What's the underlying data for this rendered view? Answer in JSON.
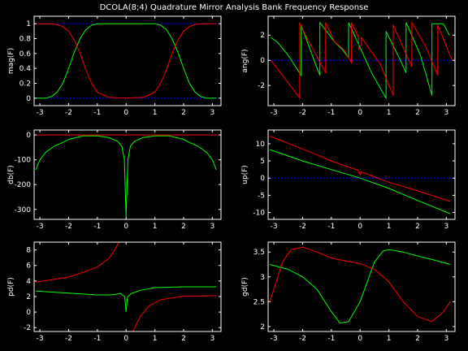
{
  "figure": {
    "title": "DCOLA(8;4) Quadrature Mirror Analysis Bank Frequency Response",
    "background": "#000000",
    "axes_color": "#ffffff",
    "series_colors": {
      "green": "#00ff00",
      "red": "#ff0000",
      "reference": "#0000ff"
    }
  },
  "chart_data": [
    {
      "type": "line",
      "ylabel": "mag(F)",
      "xlim": [
        -3.2,
        3.3
      ],
      "ylim": [
        -0.1,
        1.1
      ],
      "xticks": [
        -3,
        -2,
        -1,
        0,
        1,
        2,
        3
      ],
      "yticks": [
        0,
        0.2,
        0.4,
        0.6,
        0.8,
        1
      ],
      "ytick_labels": [
        "0",
        "0.2",
        "0.4",
        "0.6",
        "0.8",
        "1"
      ],
      "reference_lines": [
        0,
        1
      ],
      "series": [
        {
          "color": "green",
          "x": [
            -3.14,
            -2.8,
            -2.6,
            -2.4,
            -2.2,
            -2.0,
            -1.8,
            -1.6,
            -1.4,
            -1.2,
            -1.0,
            -0.6,
            0,
            0.6,
            1.0,
            1.2,
            1.4,
            1.6,
            1.8,
            2.0,
            2.2,
            2.4,
            2.6,
            2.8,
            3.14
          ],
          "y": [
            0.0,
            0.0,
            0.02,
            0.08,
            0.2,
            0.4,
            0.62,
            0.8,
            0.92,
            0.98,
            1.0,
            1.0,
            1.0,
            1.0,
            1.0,
            0.98,
            0.92,
            0.8,
            0.62,
            0.4,
            0.2,
            0.08,
            0.02,
            0.0,
            0.0
          ]
        },
        {
          "color": "red",
          "x": [
            -3.14,
            -2.8,
            -2.6,
            -2.4,
            -2.2,
            -2.0,
            -1.8,
            -1.6,
            -1.4,
            -1.2,
            -1.0,
            -0.6,
            0,
            0.6,
            1.0,
            1.2,
            1.4,
            1.6,
            1.8,
            2.0,
            2.2,
            2.4,
            2.6,
            2.8,
            3.14
          ],
          "y": [
            1.0,
            1.0,
            1.0,
            0.99,
            0.96,
            0.9,
            0.78,
            0.6,
            0.38,
            0.2,
            0.08,
            0.01,
            0.0,
            0.01,
            0.08,
            0.2,
            0.38,
            0.6,
            0.78,
            0.9,
            0.96,
            0.99,
            1.0,
            1.0,
            1.0
          ]
        }
      ]
    },
    {
      "type": "line",
      "ylabel": "ang(F)",
      "xlim": [
        -3.2,
        3.3
      ],
      "ylim": [
        -3.6,
        3.5
      ],
      "xticks": [
        -3,
        -2,
        -1,
        0,
        1,
        2,
        3
      ],
      "yticks": [
        -2,
        0,
        2
      ],
      "ytick_labels": [
        "-2",
        "0",
        "2"
      ],
      "reference_lines": [
        0
      ],
      "series": [
        {
          "color": "green",
          "x": [
            -3.1,
            -2.9,
            -2.5,
            -2.05,
            -2.05,
            -1.6,
            -1.4,
            -1.4,
            -0.9,
            -0.6,
            -0.4,
            -0.4,
            0,
            0.4,
            0.9,
            0.9,
            1.4,
            1.6,
            1.6,
            2.1,
            2.5,
            2.5,
            2.9,
            3.1
          ],
          "y": [
            1.8,
            1.5,
            0.4,
            -1.2,
            2.8,
            0.0,
            -1.2,
            3.0,
            1.5,
            0.8,
            0.2,
            3.0,
            1.0,
            -1.0,
            -3.0,
            2.3,
            0.0,
            -1.0,
            3.0,
            0.4,
            -2.8,
            2.9,
            2.9,
            2.0
          ]
        },
        {
          "color": "red",
          "x": [
            -3.1,
            -2.7,
            -2.1,
            -2.1,
            -1.9,
            -1.2,
            -1.2,
            -0.9,
            -0.55,
            -0.3,
            -0.3,
            -0.05,
            -0.05,
            0.05,
            0.05,
            0.3,
            0.7,
            1.15,
            1.15,
            1.8,
            1.8,
            2.3,
            2.7,
            2.7,
            3.2
          ],
          "y": [
            0.0,
            -1.2,
            -3.0,
            3.0,
            2.0,
            -1.0,
            3.0,
            1.5,
            0.8,
            -0.2,
            3.0,
            1.8,
            0.8,
            1.3,
            1.8,
            1.0,
            -0.3,
            -2.8,
            2.8,
            -0.5,
            3.0,
            1.0,
            -1.2,
            2.8,
            0.0
          ]
        }
      ]
    },
    {
      "type": "line",
      "ylabel": "db(F)",
      "xlim": [
        -3.2,
        3.3
      ],
      "ylim": [
        -340,
        20
      ],
      "xticks": [
        -3,
        -2,
        -1,
        0,
        1,
        2,
        3
      ],
      "yticks": [
        -300,
        -200,
        -100,
        0
      ],
      "ytick_labels": [
        "-300",
        "-200",
        "-100",
        "0"
      ],
      "reference_lines": [],
      "series": [
        {
          "color": "green",
          "x": [
            -3.14,
            -3.0,
            -2.8,
            -2.5,
            -2.2,
            -2.0,
            -1.5,
            -1.0,
            -0.6,
            -0.3,
            -0.15,
            -0.06,
            0,
            0.06,
            0.15,
            0.3,
            0.6,
            1.0,
            1.5,
            2.0,
            2.2,
            2.5,
            2.8,
            3.0,
            3.14
          ],
          "y": [
            -140,
            -100,
            -70,
            -45,
            -30,
            -18,
            -4,
            -4,
            -10,
            -25,
            -45,
            -100,
            -330,
            -100,
            -45,
            -25,
            -10,
            -4,
            -4,
            -18,
            -30,
            -45,
            -70,
            -100,
            -140
          ]
        },
        {
          "color": "red",
          "x": [
            -3.14,
            3.14
          ],
          "y": [
            0,
            0
          ]
        }
      ]
    },
    {
      "type": "line",
      "ylabel": "up(F)",
      "xlim": [
        -3.2,
        3.3
      ],
      "ylim": [
        -12,
        14
      ],
      "xticks": [
        -3,
        -2,
        -1,
        0,
        1,
        2,
        3
      ],
      "yticks": [
        -10,
        -5,
        0,
        5,
        10
      ],
      "ytick_labels": [
        "-10",
        "-5",
        "0",
        "5",
        "10"
      ],
      "reference_lines": [
        0
      ],
      "series": [
        {
          "color": "green",
          "x": [
            -3.14,
            -2.0,
            -1.0,
            0,
            1.0,
            2.0,
            3.14
          ],
          "y": [
            8.3,
            5.0,
            2.5,
            0.0,
            -3.0,
            -6.5,
            -10.4
          ]
        },
        {
          "color": "red",
          "x": [
            -3.14,
            -2.0,
            -1.0,
            -0.05,
            0.0,
            0.05,
            1.0,
            2.0,
            3.14
          ],
          "y": [
            12.2,
            8.5,
            5.0,
            2.2,
            1.0,
            1.8,
            -1.2,
            -3.7,
            -6.8
          ]
        }
      ]
    },
    {
      "type": "line",
      "ylabel": "pd(F)",
      "xlim": [
        -3.2,
        3.3
      ],
      "ylim": [
        -2.5,
        9
      ],
      "xticks": [
        -3,
        -2,
        -1,
        0,
        1,
        2,
        3
      ],
      "yticks": [
        -2,
        0,
        2,
        4,
        6,
        8
      ],
      "ytick_labels": [
        "-2",
        "0",
        "2",
        "4",
        "6",
        "8"
      ],
      "reference_lines": [],
      "series": [
        {
          "color": "green",
          "x": [
            -3.14,
            -2.0,
            -1.0,
            -0.5,
            -0.2,
            -0.05,
            0,
            0.05,
            0.2,
            0.5,
            1.0,
            2.0,
            3.14
          ],
          "y": [
            2.7,
            2.45,
            2.2,
            2.2,
            2.4,
            2.0,
            0.0,
            2.0,
            2.4,
            2.8,
            3.15,
            3.25,
            3.25
          ]
        },
        {
          "color": "red",
          "x": [
            -3.14,
            -2.0,
            -1.5,
            -1.0,
            -0.6,
            -0.4,
            -0.25,
            -0.2
          ],
          "y": [
            3.85,
            4.5,
            5.1,
            5.8,
            6.9,
            8.0,
            9.0,
            9.5
          ]
        },
        {
          "color": "red",
          "x": [
            0.2,
            0.3,
            0.5,
            0.8,
            1.2,
            2.0,
            3.14
          ],
          "y": [
            -2.8,
            -2.0,
            -0.5,
            0.8,
            1.6,
            2.05,
            2.1
          ]
        }
      ]
    },
    {
      "type": "line",
      "ylabel": "gd(F)",
      "xlim": [
        -3.2,
        3.3
      ],
      "ylim": [
        1.9,
        3.7
      ],
      "xticks": [
        -3,
        -2,
        -1,
        0,
        1,
        2,
        3
      ],
      "yticks": [
        2,
        2.5,
        3,
        3.5
      ],
      "ytick_labels": [
        "2",
        "2.5",
        "3",
        "3.5"
      ],
      "reference_lines": [],
      "series": [
        {
          "color": "green",
          "x": [
            -3.14,
            -2.5,
            -2.0,
            -1.5,
            -1.0,
            -0.7,
            -0.4,
            0,
            0.5,
            0.8,
            1.0,
            1.5,
            2.0,
            2.5,
            3.14
          ],
          "y": [
            3.25,
            3.15,
            3.0,
            2.75,
            2.3,
            2.07,
            2.1,
            2.5,
            3.3,
            3.52,
            3.55,
            3.5,
            3.42,
            3.35,
            3.25
          ]
        },
        {
          "color": "red",
          "x": [
            -3.14,
            -3.0,
            -2.7,
            -2.4,
            -2.0,
            -1.5,
            -1.0,
            -0.5,
            0,
            0.5,
            1.0,
            1.5,
            2.0,
            2.5,
            2.9,
            3.14
          ],
          "y": [
            2.5,
            2.75,
            3.3,
            3.55,
            3.6,
            3.5,
            3.38,
            3.32,
            3.27,
            3.15,
            2.9,
            2.5,
            2.2,
            2.1,
            2.3,
            2.5
          ]
        }
      ]
    }
  ]
}
